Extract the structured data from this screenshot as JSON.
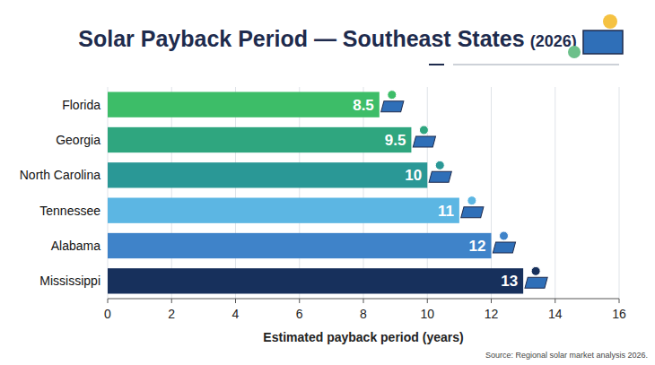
{
  "chart_data": {
    "type": "bar",
    "orientation": "horizontal",
    "title": "Solar Payback Period — Southeast States",
    "subtitle": "(2026)",
    "x_label": "Estimated payback period (years)",
    "source": "Source: Regional solar market analysis 2026.",
    "categories": [
      "Florida",
      "Georgia",
      "North Carolina",
      "Tennessee",
      "Alabama",
      "Mississippi"
    ],
    "values": [
      8.5,
      9.5,
      10,
      11,
      12,
      13
    ],
    "colors": [
      "#3dbd68",
      "#2fa67f",
      "#2a9896",
      "#5cb6e3",
      "#3f83c9",
      "#17305c"
    ],
    "xlim": [
      0,
      16
    ],
    "xticks": [
      0,
      2,
      4,
      6,
      8,
      10,
      12,
      14,
      16
    ],
    "grid": true,
    "data_labels": true
  }
}
